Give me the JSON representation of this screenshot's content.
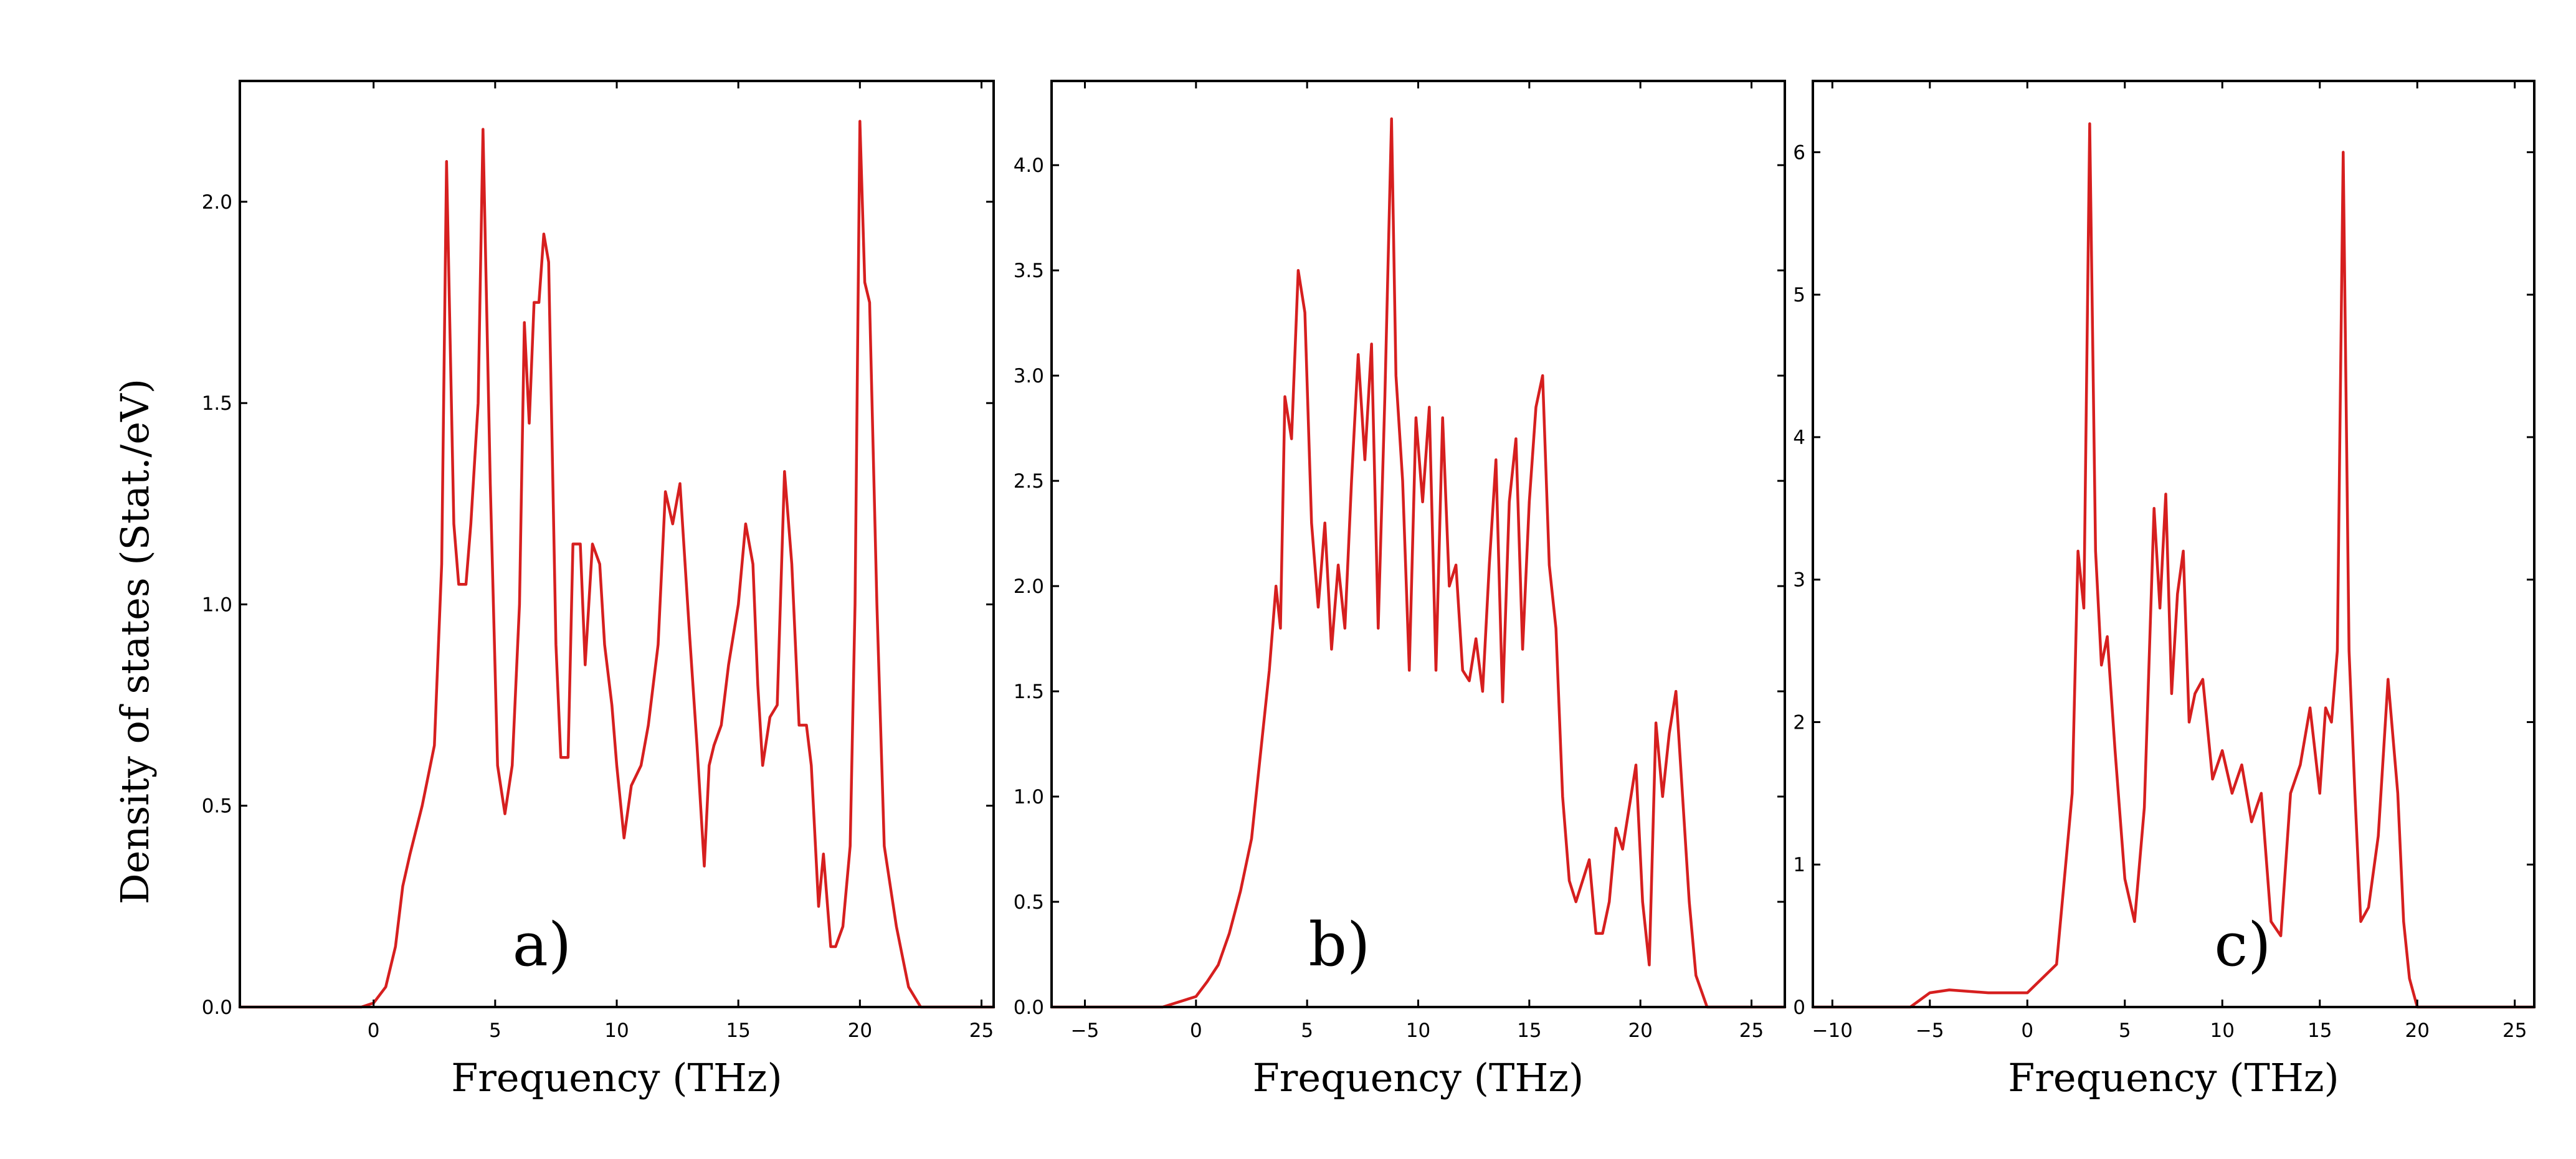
{
  "figure": {
    "ylabel": "Density of states (Stat./eV)",
    "line_color": "#d61f1f"
  },
  "chart_data": [
    {
      "type": "line",
      "panel_label": "a)",
      "xlabel": "Frequency (THz)",
      "xlim": [
        -5.5,
        25.5
      ],
      "ylim": [
        0,
        2.3
      ],
      "xticks": [
        0,
        5,
        10,
        15,
        20,
        25
      ],
      "yticks": [
        0.0,
        0.5,
        1.0,
        1.5,
        2.0
      ],
      "ytick_format": 1,
      "grid": false,
      "x": [
        -5.5,
        -0.5,
        0,
        0.5,
        0.9,
        1.2,
        1.5,
        2.0,
        2.5,
        2.8,
        3.0,
        3.3,
        3.5,
        3.8,
        4.0,
        4.3,
        4.5,
        4.8,
        5.1,
        5.4,
        5.7,
        6.0,
        6.2,
        6.4,
        6.6,
        6.8,
        7.0,
        7.2,
        7.5,
        7.7,
        8.0,
        8.2,
        8.5,
        8.7,
        9.0,
        9.3,
        9.5,
        9.8,
        10.0,
        10.3,
        10.6,
        11.0,
        11.3,
        11.7,
        12.0,
        12.3,
        12.6,
        13.0,
        13.3,
        13.6,
        13.8,
        14.0,
        14.3,
        14.6,
        15.0,
        15.3,
        15.6,
        15.8,
        16.0,
        16.3,
        16.6,
        16.9,
        17.2,
        17.5,
        17.8,
        18.0,
        18.3,
        18.5,
        18.8,
        19.0,
        19.3,
        19.6,
        19.8,
        20.0,
        20.2,
        20.4,
        20.7,
        21.0,
        21.5,
        22.0,
        22.5,
        25.5
      ],
      "y": [
        0.0,
        0.0,
        0.01,
        0.05,
        0.15,
        0.3,
        0.38,
        0.5,
        0.65,
        1.1,
        2.1,
        1.2,
        1.05,
        1.05,
        1.2,
        1.5,
        2.18,
        1.3,
        0.6,
        0.48,
        0.6,
        1.0,
        1.7,
        1.45,
        1.75,
        1.75,
        1.92,
        1.85,
        0.9,
        0.62,
        0.62,
        1.15,
        1.15,
        0.85,
        1.15,
        1.1,
        0.9,
        0.75,
        0.6,
        0.42,
        0.55,
        0.6,
        0.7,
        0.9,
        1.28,
        1.2,
        1.3,
        0.92,
        0.65,
        0.35,
        0.6,
        0.65,
        0.7,
        0.85,
        1.0,
        1.2,
        1.1,
        0.8,
        0.6,
        0.72,
        0.75,
        1.33,
        1.1,
        0.7,
        0.7,
        0.6,
        0.25,
        0.38,
        0.15,
        0.15,
        0.2,
        0.4,
        1.0,
        2.2,
        1.8,
        1.75,
        1.0,
        0.4,
        0.2,
        0.05,
        0.0,
        0.0
      ]
    },
    {
      "type": "line",
      "panel_label": "b)",
      "xlabel": "Frequency (THz)",
      "xlim": [
        -6.5,
        26.5
      ],
      "ylim": [
        0,
        4.4
      ],
      "xticks": [
        -5,
        0,
        5,
        10,
        15,
        20,
        25
      ],
      "yticks": [
        0.0,
        0.5,
        1.0,
        1.5,
        2.0,
        2.5,
        3.0,
        3.5,
        4.0
      ],
      "ytick_format": 1,
      "grid": false,
      "x": [
        -6.5,
        -1.5,
        0,
        0.5,
        1.0,
        1.5,
        2.0,
        2.5,
        3.0,
        3.3,
        3.6,
        3.8,
        4.0,
        4.3,
        4.6,
        4.9,
        5.2,
        5.5,
        5.8,
        6.1,
        6.4,
        6.7,
        7.0,
        7.3,
        7.6,
        7.9,
        8.2,
        8.5,
        8.8,
        9.0,
        9.3,
        9.6,
        9.9,
        10.2,
        10.5,
        10.8,
        11.1,
        11.4,
        11.7,
        12.0,
        12.3,
        12.6,
        12.9,
        13.2,
        13.5,
        13.8,
        14.1,
        14.4,
        14.7,
        15.0,
        15.3,
        15.6,
        15.9,
        16.2,
        16.5,
        16.8,
        17.1,
        17.4,
        17.7,
        18.0,
        18.3,
        18.6,
        18.9,
        19.2,
        19.5,
        19.8,
        20.1,
        20.4,
        20.7,
        21.0,
        21.3,
        21.6,
        21.9,
        22.2,
        22.5,
        23.0,
        26.5
      ],
      "y": [
        0.0,
        0.0,
        0.05,
        0.12,
        0.2,
        0.35,
        0.55,
        0.8,
        1.3,
        1.6,
        2.0,
        1.8,
        2.9,
        2.7,
        3.5,
        3.3,
        2.3,
        1.9,
        2.3,
        1.7,
        2.1,
        1.8,
        2.5,
        3.1,
        2.6,
        3.15,
        1.8,
        2.9,
        4.22,
        3.0,
        2.5,
        1.6,
        2.8,
        2.4,
        2.85,
        1.6,
        2.8,
        2.0,
        2.1,
        1.6,
        1.55,
        1.75,
        1.5,
        2.1,
        2.6,
        1.45,
        2.4,
        2.7,
        1.7,
        2.4,
        2.85,
        3.0,
        2.1,
        1.8,
        1.0,
        0.6,
        0.5,
        0.6,
        0.7,
        0.35,
        0.35,
        0.5,
        0.85,
        0.75,
        0.95,
        1.15,
        0.5,
        0.2,
        1.35,
        1.0,
        1.3,
        1.5,
        1.0,
        0.5,
        0.15,
        0.0,
        0.0
      ]
    },
    {
      "type": "line",
      "panel_label": "c)",
      "xlabel": "Frequency (THz)",
      "xlim": [
        -11,
        26
      ],
      "ylim": [
        0,
        6.5
      ],
      "xticks": [
        -10,
        -5,
        0,
        5,
        10,
        15,
        20,
        25
      ],
      "yticks": [
        0,
        1,
        2,
        3,
        4,
        5,
        6
      ],
      "ytick_format": 0,
      "grid": false,
      "x": [
        -11,
        -6,
        -5,
        -4,
        -2,
        0,
        1.5,
        2.3,
        2.6,
        2.9,
        3.2,
        3.5,
        3.8,
        4.1,
        4.5,
        5.0,
        5.5,
        6.0,
        6.5,
        6.8,
        7.1,
        7.4,
        7.7,
        8.0,
        8.3,
        8.6,
        9.0,
        9.5,
        10.0,
        10.5,
        11.0,
        11.5,
        12.0,
        12.5,
        13.0,
        13.5,
        14.0,
        14.5,
        15.0,
        15.3,
        15.6,
        15.9,
        16.2,
        16.5,
        16.8,
        17.1,
        17.5,
        18.0,
        18.5,
        19.0,
        19.3,
        19.6,
        20.0,
        20.5,
        21.0,
        26
      ],
      "y": [
        0.0,
        0.0,
        0.1,
        0.12,
        0.1,
        0.1,
        0.3,
        1.5,
        3.2,
        2.8,
        6.2,
        3.2,
        2.4,
        2.6,
        1.8,
        0.9,
        0.6,
        1.4,
        3.5,
        2.8,
        3.6,
        2.2,
        2.9,
        3.2,
        2.0,
        2.2,
        2.3,
        1.6,
        1.8,
        1.5,
        1.7,
        1.3,
        1.5,
        0.6,
        0.5,
        1.5,
        1.7,
        2.1,
        1.5,
        2.1,
        2.0,
        2.5,
        6.0,
        2.5,
        1.5,
        0.6,
        0.7,
        1.2,
        2.3,
        1.5,
        0.6,
        0.2,
        0.0,
        0.0,
        0.0,
        0.0
      ]
    }
  ]
}
